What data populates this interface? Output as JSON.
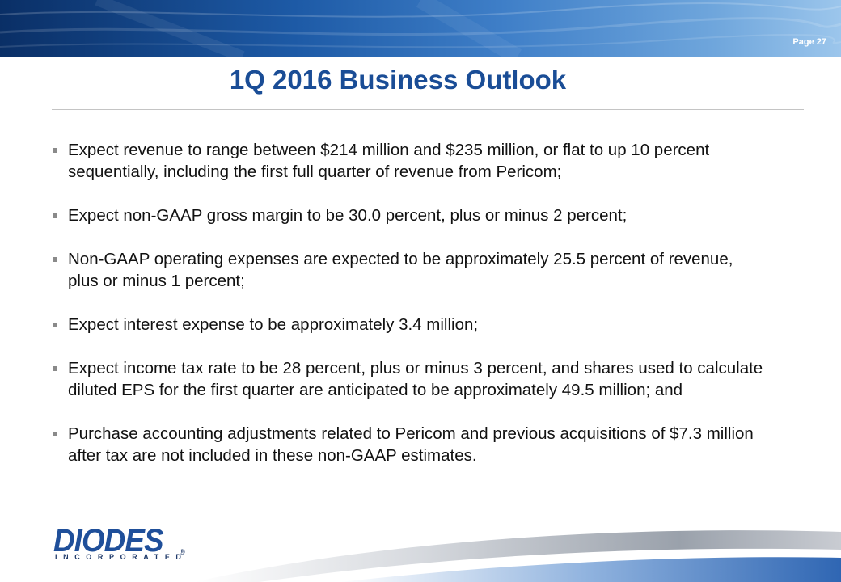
{
  "header": {
    "page_label": "Page 27"
  },
  "slide": {
    "title": "1Q 2016 Business Outlook",
    "bullets": [
      "Expect revenue to range between $214 million and $235 million, or flat to up 10 percent sequentially, including the first full quarter of revenue from Pericom;",
      "Expect non-GAAP gross margin to be 30.0 percent, plus or minus 2 percent;",
      "Non-GAAP operating expenses are expected to be approximately 25.5 percent of revenue, plus or minus 1 percent;",
      "Expect interest expense to be approximately 3.4 million;",
      "Expect income tax rate to be 28 percent, plus or minus 3 percent, and shares used to calculate diluted EPS for the first quarter are anticipated to be approximately 49.5 million; and",
      "Purchase accounting adjustments related to Pericom and previous acquisitions of $7.3 million after tax are not included in these non-GAAP estimates."
    ]
  },
  "logo": {
    "name": "DIODES",
    "subtitle": "INCORPORATED",
    "registered": "®"
  },
  "colors": {
    "title": "#1a4d96",
    "banner_dark": "#0a2f66",
    "banner_light": "#9cc6ec",
    "bullet_marker": "#8a8a8a",
    "logo": "#1f4f9a"
  }
}
